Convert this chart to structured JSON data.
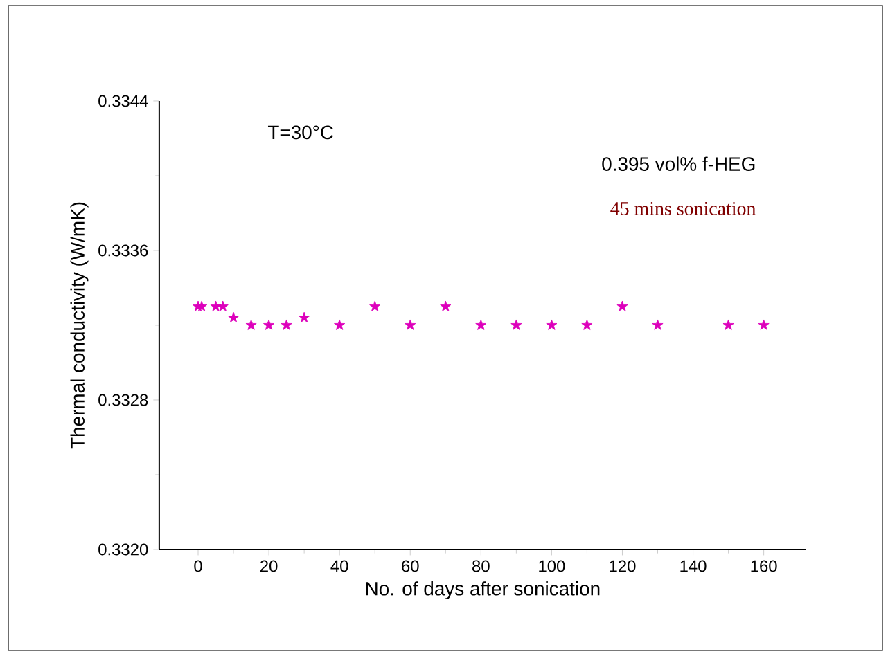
{
  "chart_data": {
    "type": "scatter",
    "xlabel": "No. of days after sonication",
    "ylabel": "Thermal conductivity (W/mK)",
    "annotations": [
      "T=30°C",
      "0.395 vol% f-HEG",
      "45 mins sonication"
    ],
    "x": [
      0,
      1,
      5,
      7,
      10,
      15,
      20,
      25,
      30,
      40,
      50,
      60,
      70,
      80,
      90,
      100,
      110,
      120,
      130,
      150,
      160
    ],
    "values": [
      0.3333,
      0.3333,
      0.3333,
      0.3333,
      0.33324,
      0.3332,
      0.3332,
      0.3332,
      0.33324,
      0.3332,
      0.3333,
      0.3332,
      0.3333,
      0.3332,
      0.3332,
      0.3332,
      0.3332,
      0.3333,
      0.3332,
      0.3332,
      0.3332
    ],
    "color": "#dd00bb",
    "marker": "star",
    "xlim": [
      -11,
      172
    ],
    "ylim": [
      0.332,
      0.3344
    ],
    "xticks": [
      0,
      20,
      40,
      60,
      80,
      100,
      120,
      140,
      160
    ],
    "yticks": [
      {
        "value": 0.332,
        "label": "0.3320"
      },
      {
        "value": 0.3328,
        "label": "0.3328"
      },
      {
        "value": 0.3336,
        "label": "0.3336"
      },
      {
        "value": 0.3344,
        "label": "0.3344"
      }
    ],
    "grid": false
  }
}
